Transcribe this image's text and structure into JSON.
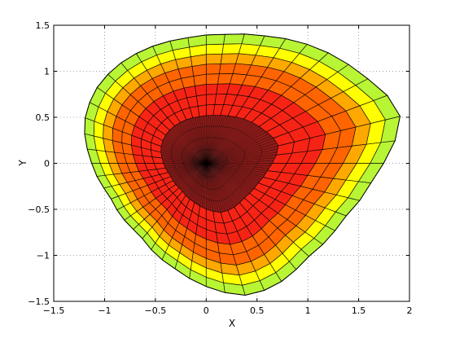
{
  "chart_data": {
    "type": "heatmap",
    "plot_kind": "filled polar surface mesh (view from top)",
    "xlabel": "X",
    "ylabel": "Y",
    "xlim": [
      -1.5,
      2
    ],
    "ylim": [
      -1.5,
      1.5
    ],
    "x_ticks": [
      -1.5,
      -1,
      -0.5,
      0,
      0.5,
      1,
      1.5,
      2
    ],
    "y_ticks": [
      -1.5,
      -1,
      -0.5,
      0,
      0.5,
      1,
      1.5
    ],
    "x_tick_labels": [
      "−1.5",
      "−1",
      "−0.5",
      "0",
      "0.5",
      "1",
      "1.5",
      "2"
    ],
    "y_tick_labels": [
      "−1.5",
      "−1",
      "−0.5",
      "0",
      "0.5",
      "1",
      "1.5"
    ],
    "grid": true,
    "grid_style": "dotted",
    "boundary_points": [
      [
        1.88,
        0.62
      ],
      [
        1.55,
        0.95
      ],
      [
        1.1,
        1.25
      ],
      [
        0.6,
        1.38
      ],
      [
        0.2,
        1.4
      ],
      [
        -0.2,
        1.36
      ],
      [
        -0.6,
        1.24
      ],
      [
        -0.9,
        1.04
      ],
      [
        -1.1,
        0.78
      ],
      [
        -1.2,
        0.44
      ],
      [
        -1.14,
        0.05
      ],
      [
        -0.95,
        -0.35
      ],
      [
        -0.65,
        -0.78
      ],
      [
        -0.3,
        -1.15
      ],
      [
        0.05,
        -1.36
      ],
      [
        0.35,
        -1.44
      ],
      [
        0.65,
        -1.35
      ],
      [
        1.0,
        -1.02
      ],
      [
        1.35,
        -0.6
      ],
      [
        1.65,
        -0.15
      ],
      [
        1.86,
        0.25
      ],
      [
        1.92,
        0.45
      ]
    ],
    "radial_levels": 12,
    "angular_divisions": 48,
    "color_bands": [
      {
        "from": 0.0,
        "to": 0.35,
        "color": "#8e1a18"
      },
      {
        "from": 0.35,
        "to": 0.6,
        "color": "#f72416"
      },
      {
        "from": 0.6,
        "to": 0.75,
        "color": "#ff6400"
      },
      {
        "from": 0.75,
        "to": 0.84,
        "color": "#ffa800"
      },
      {
        "from": 0.84,
        "to": 0.92,
        "color": "#ffff00"
      },
      {
        "from": 0.92,
        "to": 0.97,
        "color": "#b8f534"
      },
      {
        "from": 0.97,
        "to": 1.0,
        "color": "#6ff56b"
      }
    ],
    "mesh_color": "#000000"
  }
}
